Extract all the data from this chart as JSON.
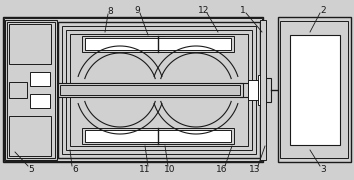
{
  "bg_color": "#d0d0d0",
  "line_color": "#1a1a1a",
  "white": "#ffffff",
  "light_gray": "#c8c8c8",
  "figsize": [
    3.54,
    1.8
  ],
  "dpi": 100
}
